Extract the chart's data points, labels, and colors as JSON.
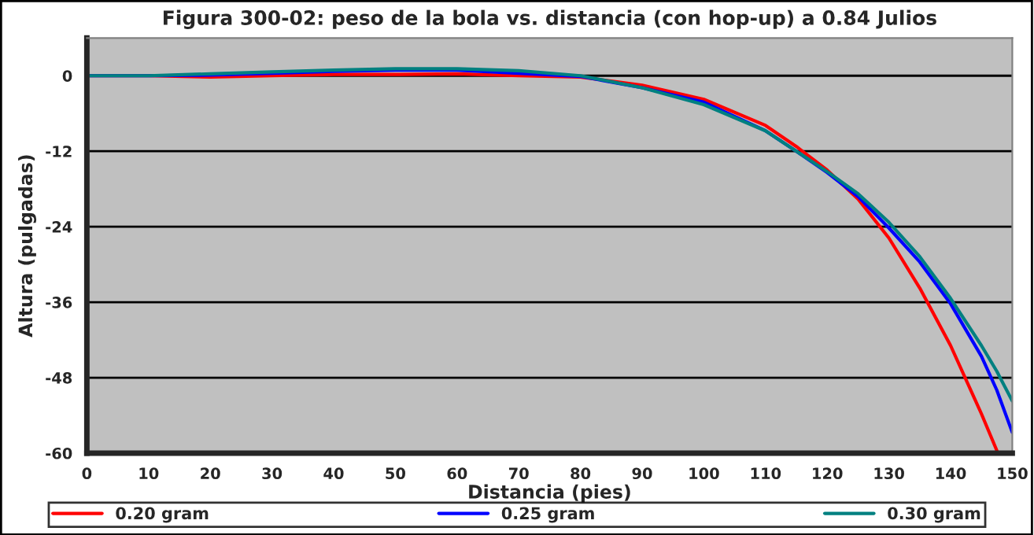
{
  "chart_data": {
    "type": "line",
    "title": "Figura 300-02: peso de la bola vs. distancia (con hop-up) a 0.84 Julios",
    "xlabel": "Distancia (pies)",
    "ylabel": "Altura (pulgadas)",
    "x": [
      0,
      10,
      20,
      30,
      40,
      50,
      60,
      70,
      80,
      90,
      100,
      110,
      115,
      120,
      125,
      130,
      135,
      140,
      145,
      147.5,
      150
    ],
    "series": [
      {
        "name": "0.20 gram",
        "color": "#ff0000",
        "values": [
          0,
          0,
          -0.2,
          0,
          0.2,
          0.2,
          0.3,
          0,
          -0.2,
          -1.5,
          -3.75,
          -7.9,
          -11.25,
          -15,
          -19.6,
          -25.8,
          -33.75,
          -42.9,
          -53.75,
          -59.6,
          null
        ]
      },
      {
        "name": "0.25 gram",
        "color": "#0000ff",
        "values": [
          0,
          0,
          0.1,
          0.4,
          0.7,
          0.9,
          0.9,
          0.4,
          -0.1,
          -1.9,
          -4.2,
          -8.75,
          -12,
          -15.4,
          -19.2,
          -24.2,
          -29.6,
          -36.25,
          -44.6,
          -50,
          -56.7
        ]
      },
      {
        "name": "0.30 gram",
        "color": "#008080",
        "values": [
          0,
          0,
          0.3,
          0.6,
          0.9,
          1.1,
          1.1,
          0.8,
          0,
          -1.9,
          -4.6,
          -8.75,
          -12,
          -15.25,
          -18.75,
          -23.3,
          -28.75,
          -35.4,
          -42.9,
          -47,
          -51.7
        ]
      }
    ],
    "xlim": [
      0,
      150
    ],
    "ylim": [
      -60,
      6
    ],
    "xticks": [
      0,
      10,
      20,
      30,
      40,
      50,
      60,
      70,
      80,
      90,
      100,
      110,
      120,
      130,
      140,
      150
    ],
    "yticks": [
      0,
      -12,
      -24,
      -36,
      -48,
      -60
    ],
    "grid": "y",
    "legend": "bottom",
    "line_style": "solid",
    "marker": "none"
  }
}
